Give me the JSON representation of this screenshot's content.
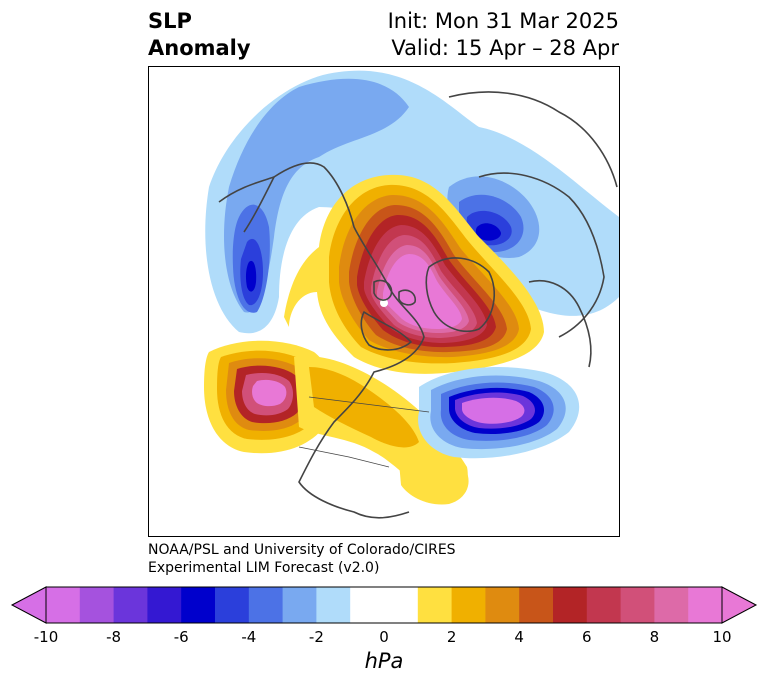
{
  "title": {
    "line1": "SLP",
    "line2": "Anomaly"
  },
  "init": "Init: Mon 31 Mar 2025",
  "valid": "Valid: 15 Apr – 28 Apr",
  "credit": {
    "line1": "NOAA/PSL and University of Colorado/CIRES",
    "line2": "Experimental LIM Forecast (v2.0)"
  },
  "colorbar": {
    "colors": [
      "#d66fe6",
      "#a552de",
      "#6b35db",
      "#3418d2",
      "#0000cc",
      "#2b3fdb",
      "#4c72e6",
      "#79a9f0",
      "#b0dcfa",
      "#ffffff",
      "#ffffff",
      "#ffe040",
      "#f0b000",
      "#df8b10",
      "#c85519",
      "#b32426",
      "#c2374f",
      "#d15079",
      "#dd6aa8",
      "#e878d6"
    ],
    "ticks": [
      "-10",
      "-8",
      "-6",
      "-4",
      "-2",
      "0",
      "2",
      "4",
      "6",
      "8",
      "10"
    ],
    "unit": "hPa"
  },
  "anomalies": [
    {
      "id": "arctic-high",
      "sign": "positive",
      "peak_hpa": 10
    },
    {
      "id": "north-pacific-high",
      "sign": "positive",
      "peak_hpa": 10
    },
    {
      "id": "north-atlantic-low",
      "sign": "negative",
      "peak_hpa": -10
    },
    {
      "id": "gulf-of-alaska-low",
      "sign": "negative",
      "peak_hpa": -8
    },
    {
      "id": "scandinavia-low",
      "sign": "negative",
      "peak_hpa": -6
    },
    {
      "id": "us-high",
      "sign": "positive",
      "peak_hpa": 2
    }
  ]
}
